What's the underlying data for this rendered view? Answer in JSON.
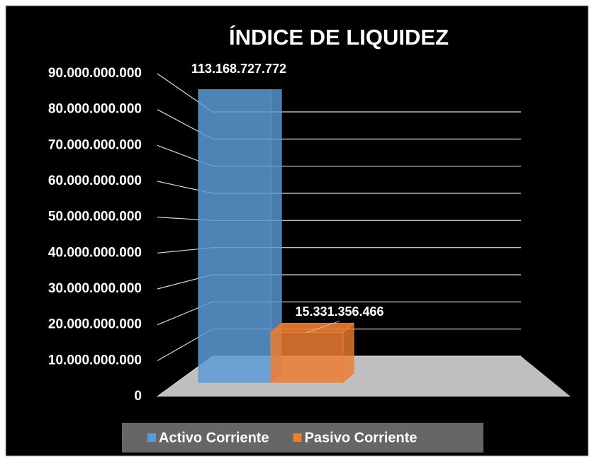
{
  "chart_data": {
    "type": "bar3d",
    "title": "ÍNDICE DE LIQUIDEZ",
    "categories": [
      null
    ],
    "series": [
      {
        "name": "Activo Corriente",
        "color": "#5b9bd5",
        "values": [
          113168727772
        ],
        "value_labels": [
          "113.168.727.772"
        ]
      },
      {
        "name": "Pasivo Corriente",
        "color": "#ed7d31",
        "values": [
          15331356466
        ],
        "value_labels": [
          "15.331.356.466"
        ]
      }
    ],
    "ylim": [
      0,
      90000000000
    ],
    "yticks": [
      0,
      {
        "value": 10000000000,
        "label": "10.000.000.000"
      },
      {
        "value": 20000000000,
        "label": "20.000.000.000"
      },
      {
        "value": 30000000000,
        "label": "30.000.000.000"
      },
      {
        "value": 40000000000,
        "label": "40.000.000.000"
      },
      {
        "value": 50000000000,
        "label": "50.000.000.000"
      },
      {
        "value": 60000000000,
        "label": "60.000.000.000"
      },
      {
        "value": 70000000000,
        "label": "70.000.000.000"
      },
      {
        "value": 80000000000,
        "label": "80.000.000.000"
      },
      {
        "value": 90000000000,
        "label": "90.000.000.000"
      }
    ],
    "grid": true,
    "legend": "bottom"
  }
}
